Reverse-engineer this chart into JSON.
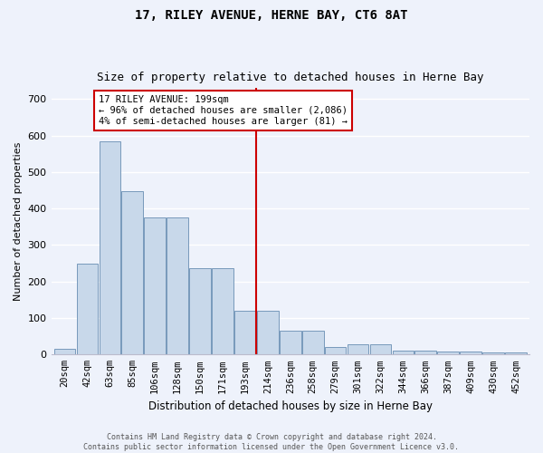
{
  "title": "17, RILEY AVENUE, HERNE BAY, CT6 8AT",
  "subtitle": "Size of property relative to detached houses in Herne Bay",
  "xlabel": "Distribution of detached houses by size in Herne Bay",
  "ylabel": "Number of detached properties",
  "categories": [
    "20sqm",
    "42sqm",
    "63sqm",
    "85sqm",
    "106sqm",
    "128sqm",
    "150sqm",
    "171sqm",
    "193sqm",
    "214sqm",
    "236sqm",
    "258sqm",
    "279sqm",
    "301sqm",
    "322sqm",
    "344sqm",
    "366sqm",
    "387sqm",
    "409sqm",
    "430sqm",
    "452sqm"
  ],
  "values": [
    15,
    248,
    585,
    447,
    375,
    375,
    237,
    237,
    120,
    120,
    65,
    65,
    20,
    28,
    28,
    10,
    10,
    8,
    8,
    5,
    5
  ],
  "bar_color": "#c8d8ea",
  "bar_edge_color": "#7799bb",
  "vline_color": "#cc0000",
  "annotation_text": "17 RILEY AVENUE: 199sqm\n← 96% of detached houses are smaller (2,086)\n4% of semi-detached houses are larger (81) →",
  "annotation_box_color": "#cc0000",
  "ylim": [
    0,
    730
  ],
  "yticks": [
    0,
    100,
    200,
    300,
    400,
    500,
    600,
    700
  ],
  "footer_line1": "Contains HM Land Registry data © Crown copyright and database right 2024.",
  "footer_line2": "Contains public sector information licensed under the Open Government Licence v3.0.",
  "background_color": "#eef2fb"
}
